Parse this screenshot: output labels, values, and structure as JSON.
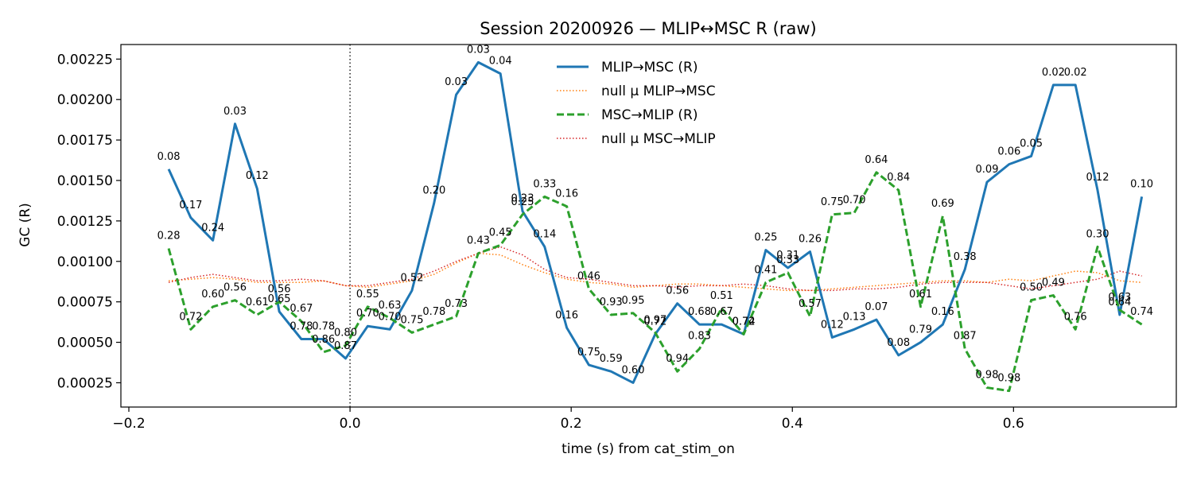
{
  "chart_data": {
    "type": "line",
    "title": "Session 20200926 — MLIP↔MSC R (raw)",
    "xlabel": "time (s) from cat_stim_on",
    "ylabel": "GC (R)",
    "xlim": [
      -0.2072,
      0.7472
    ],
    "ylim": [
      0.0001,
      0.00234
    ],
    "x_ticks": [
      -0.2,
      0.0,
      0.2,
      0.4,
      0.6
    ],
    "x_tick_labels": [
      "−0.2",
      "0.0",
      "0.2",
      "0.4",
      "0.6"
    ],
    "y_ticks": [
      0.00025,
      0.0005,
      0.00075,
      0.001,
      0.00125,
      0.0015,
      0.00175,
      0.002,
      0.00225
    ],
    "y_tick_labels": [
      "0.00025",
      "0.00050",
      "0.00075",
      "0.00100",
      "0.00125",
      "0.00150",
      "0.00175",
      "0.00200",
      "0.00225"
    ],
    "event_line_x": 0.0,
    "legend_position": "top-center",
    "x": [
      -0.164,
      -0.144,
      -0.124,
      -0.104,
      -0.084,
      -0.064,
      -0.044,
      -0.024,
      -0.004,
      0.016,
      0.036,
      0.056,
      0.076,
      0.096,
      0.116,
      0.136,
      0.156,
      0.176,
      0.196,
      0.216,
      0.236,
      0.256,
      0.276,
      0.296,
      0.316,
      0.336,
      0.356,
      0.376,
      0.396,
      0.416,
      0.436,
      0.456,
      0.476,
      0.496,
      0.516,
      0.536,
      0.556,
      0.576,
      0.596,
      0.616,
      0.636,
      0.656,
      0.676,
      0.696,
      0.716
    ],
    "series": [
      {
        "name": "MLIP→MSC (R)",
        "color": "#1f77b4",
        "style": "solid",
        "values": [
          0.00157,
          0.00127,
          0.00113,
          0.00185,
          0.00145,
          0.00069,
          0.00052,
          0.00052,
          0.0004,
          0.0006,
          0.00058,
          0.00082,
          0.00136,
          0.00203,
          0.00223,
          0.00216,
          0.00131,
          0.00109,
          0.00059,
          0.00036,
          0.00032,
          0.00025,
          0.00055,
          0.00074,
          0.00061,
          0.00061,
          0.00055,
          0.00107,
          0.00096,
          0.00106,
          0.00053,
          0.00058,
          0.00064,
          0.00042,
          0.0005,
          0.00061,
          0.00095,
          0.00149,
          0.0016,
          0.00165,
          0.00209,
          0.00209,
          0.00144,
          0.00067,
          0.0014
        ],
        "pvalues": [
          "0.08",
          "0.17",
          "0.24",
          "0.03",
          "0.12",
          "0.65",
          "0.78",
          "0.78",
          "0.87",
          "0.70",
          "0.70",
          "0.52",
          "0.20",
          "0.03",
          "0.03",
          "0.04",
          "0.23",
          "0.14",
          "0.16",
          "0.75",
          "0.59",
          "0.60",
          "0.72",
          "0.56",
          "0.68",
          "0.67",
          "0.72",
          "0.25",
          "0.31",
          "0.26",
          "0.12",
          "0.13",
          "0.07",
          "0.08",
          "0.79",
          "0.16",
          "0.38",
          "0.09",
          "0.06",
          "0.05",
          "0.02",
          "0.02",
          "0.12",
          "0.64",
          "0.10"
        ]
      },
      {
        "name": "null μ MLIP→MSC",
        "color": "#ff7f0e",
        "style": "dotted",
        "values": [
          0.00088,
          0.00089,
          0.0009,
          0.00089,
          0.00087,
          0.00087,
          0.00087,
          0.00088,
          0.00085,
          0.00084,
          0.00086,
          0.00088,
          0.00092,
          0.00099,
          0.00105,
          0.00104,
          0.00098,
          0.00093,
          0.00089,
          0.00087,
          0.00086,
          0.00084,
          0.00085,
          0.00086,
          0.00086,
          0.00085,
          0.00084,
          0.00083,
          0.00082,
          0.00082,
          0.00083,
          0.00084,
          0.00085,
          0.00086,
          0.00087,
          0.00088,
          0.00088,
          0.00087,
          0.00089,
          0.00088,
          0.00091,
          0.00094,
          0.00093,
          0.00088,
          0.00087
        ]
      },
      {
        "name": "MSC→MLIP (R)",
        "color": "#2ca02c",
        "style": "dashed",
        "values": [
          0.00108,
          0.00058,
          0.00072,
          0.00076,
          0.00067,
          0.00075,
          0.00063,
          0.00044,
          0.00048,
          0.00072,
          0.00065,
          0.00056,
          0.00061,
          0.00066,
          0.00105,
          0.0011,
          0.00129,
          0.0014,
          0.00134,
          0.00083,
          0.00067,
          0.00068,
          0.00056,
          0.00032,
          0.00046,
          0.00071,
          0.00055,
          0.00087,
          0.00093,
          0.00066,
          0.00129,
          0.0013,
          0.00155,
          0.00144,
          0.00072,
          0.00128,
          0.00046,
          0.00022,
          0.0002,
          0.00076,
          0.00079,
          0.00058,
          0.00109,
          0.0007,
          0.00061
        ],
        "pvalues": [
          "0.28",
          "0.72",
          "0.60",
          "0.56",
          "0.61",
          "0.56",
          "0.67",
          "0.86",
          "0.80",
          "0.55",
          "0.63",
          "0.75",
          "0.78",
          "0.73",
          "0.43",
          "0.45",
          "0.25",
          "0.33",
          "0.16",
          "0.46",
          "0.93",
          "0.95",
          "0.97",
          "0.94",
          "0.83",
          "0.51",
          "0.74",
          "0.41",
          "0.33",
          "0.57",
          "0.75",
          "0.70",
          "0.64",
          "0.84",
          "0.61",
          "0.69",
          "0.87",
          "0.98",
          "0.98",
          "0.50",
          "0.49",
          "0.76",
          "0.30",
          "0.63",
          "0.74"
        ]
      },
      {
        "name": "null μ MSC→MLIP",
        "color": "#d62728",
        "style": "dotted",
        "values": [
          0.00087,
          0.0009,
          0.00092,
          0.0009,
          0.00088,
          0.00088,
          0.00089,
          0.00088,
          0.00085,
          0.00085,
          0.00087,
          0.00089,
          0.00094,
          0.001,
          0.00105,
          0.00109,
          0.00104,
          0.00095,
          0.0009,
          0.00089,
          0.00087,
          0.00085,
          0.00085,
          0.00084,
          0.00085,
          0.00085,
          0.00086,
          0.00085,
          0.00083,
          0.00082,
          0.00082,
          0.00083,
          0.00083,
          0.00084,
          0.00086,
          0.00087,
          0.00087,
          0.00087,
          0.00085,
          0.00083,
          0.00085,
          0.00087,
          0.00089,
          0.00094,
          0.00091
        ]
      }
    ]
  }
}
